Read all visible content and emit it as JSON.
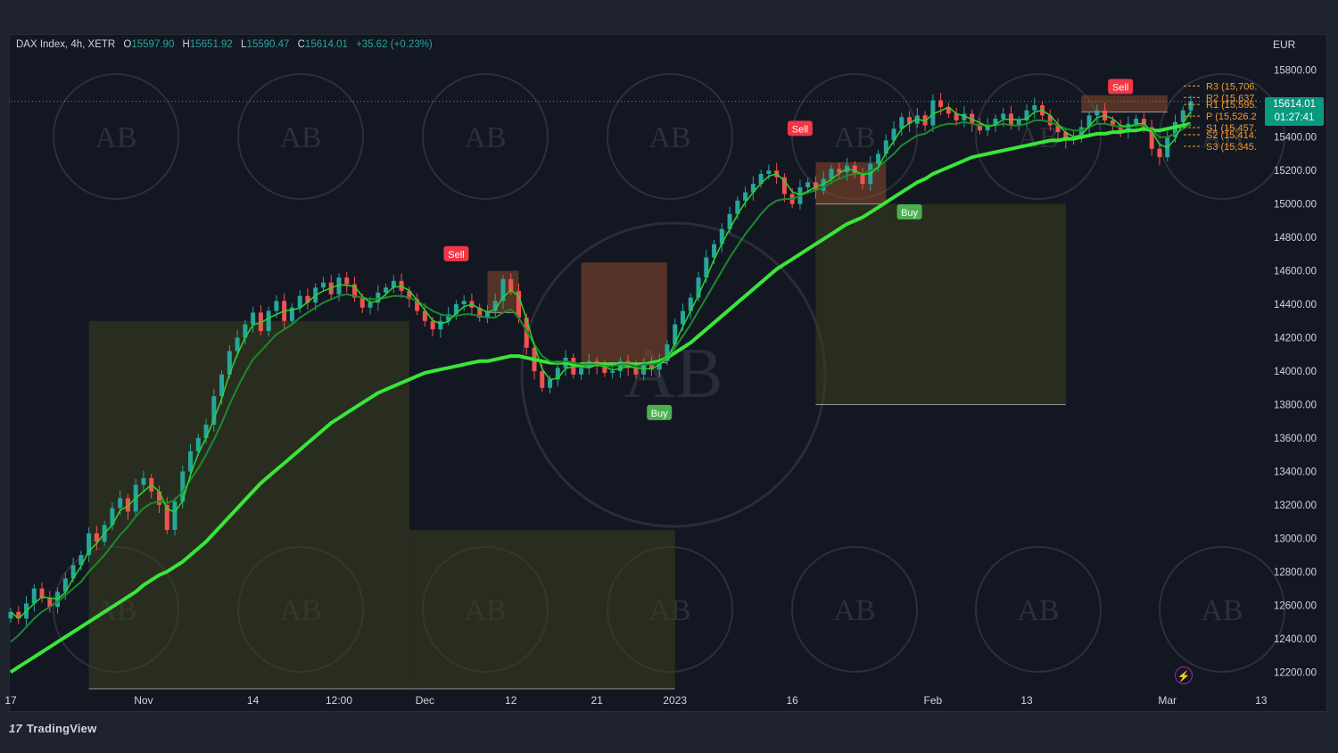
{
  "header": {
    "symbol": "DAX Index, 4h, XETR",
    "open_key": "O",
    "open": "15597.90",
    "high_key": "H",
    "high": "15651.92",
    "low_key": "L",
    "low": "15590.47",
    "close_key": "C",
    "close": "15614.01",
    "change": "+35.62 (+0.23%)"
  },
  "currency": "EUR",
  "price_badge": {
    "price": "15614.01",
    "countdown": "01:27:41"
  },
  "brand": {
    "logo_mark": "17",
    "name": "TradingView"
  },
  "icons": {
    "bolt": "lightning-icon"
  },
  "colors": {
    "up": "#26a69a",
    "down": "#ef5350",
    "ma": "#39e639",
    "ma_dim": "#1b8a2b",
    "zone_buy": "#3d3f1e",
    "zone_sell": "#8a4a2a",
    "label_sell": "#f23645",
    "label_buy": "#4caf50",
    "pivot": "#f59b2a",
    "watermark": "#5a5f6b"
  },
  "chart_data": {
    "type": "candlestick",
    "y_axis": {
      "range": [
        12100,
        15900
      ],
      "ticks": [
        "15800.00",
        "15600.00",
        "15400.00",
        "15200.00",
        "15000.00",
        "14800.00",
        "14600.00",
        "14400.00",
        "14200.00",
        "14000.00",
        "13800.00",
        "13600.00",
        "13400.00",
        "13200.00",
        "13000.00",
        "12800.00",
        "12600.00",
        "12400.00",
        "12200.00"
      ]
    },
    "x_axis": {
      "ticks": [
        "17",
        "Nov",
        "14",
        "12:00",
        "Dec",
        "12",
        "21",
        "2023",
        "16",
        "Feb",
        "13",
        "Mar",
        "13"
      ],
      "tick_index": [
        0,
        17,
        31,
        42,
        53,
        64,
        75,
        85,
        100,
        118,
        130,
        148,
        160
      ]
    },
    "close_series": [
      12560,
      12520,
      12610,
      12700,
      12640,
      12590,
      12680,
      12760,
      12840,
      12900,
      13030,
      12980,
      13080,
      13180,
      13240,
      13160,
      13320,
      13360,
      13280,
      13200,
      13050,
      13220,
      13400,
      13520,
      13600,
      13680,
      13850,
      13980,
      14120,
      14200,
      14280,
      14350,
      14240,
      14360,
      14420,
      14300,
      14380,
      14450,
      14410,
      14500,
      14530,
      14460,
      14560,
      14520,
      14440,
      14380,
      14410,
      14470,
      14500,
      14540,
      14480,
      14430,
      14360,
      14300,
      14250,
      14300,
      14340,
      14400,
      14420,
      14380,
      14320,
      14360,
      14420,
      14550,
      14480,
      14320,
      14140,
      14000,
      13900,
      13950,
      14020,
      14080,
      13980,
      14020,
      14060,
      14030,
      13990,
      14000,
      14060,
      14020,
      13980,
      14050,
      14010,
      14060,
      14160,
      14280,
      14360,
      14440,
      14560,
      14680,
      14760,
      14850,
      14940,
      15020,
      15070,
      15120,
      15180,
      15200,
      15160,
      15060,
      15000,
      15100,
      15130,
      15080,
      15150,
      15210,
      15190,
      15230,
      15180,
      15120,
      15240,
      15300,
      15380,
      15450,
      15520,
      15480,
      15530,
      15470,
      15620,
      15580,
      15540,
      15500,
      15540,
      15480,
      15440,
      15470,
      15510,
      15540,
      15470,
      15500,
      15560,
      15590,
      15530,
      15470,
      15430,
      15380,
      15400,
      15460,
      15530,
      15560,
      15500,
      15470,
      15440,
      15480,
      15510,
      15460,
      15330,
      15280,
      15400,
      15490,
      15560,
      15614
    ],
    "ma_fast": [
      12380,
      12420,
      12470,
      12520,
      12560,
      12590,
      12620,
      12660,
      12700,
      12740,
      12800,
      12850,
      12900,
      12960,
      13020,
      13070,
      13130,
      13180,
      13210,
      13220,
      13210,
      13230,
      13280,
      13350,
      13420,
      13500,
      13590,
      13690,
      13800,
      13900,
      13990,
      14070,
      14120,
      14170,
      14220,
      14250,
      14280,
      14320,
      14350,
      14380,
      14410,
      14430,
      14450,
      14460,
      14450,
      14440,
      14430,
      14430,
      14440,
      14450,
      14450,
      14440,
      14420,
      14390,
      14360,
      14340,
      14330,
      14330,
      14340,
      14340,
      14330,
      14320,
      14320,
      14350,
      14370,
      14320,
      14240,
      14160,
      14090,
      14060,
      14050,
      14060,
      14050,
      14040,
      14040,
      14040,
      14030,
      14030,
      14040,
      14040,
      14030,
      14040,
      14040,
      14050,
      14080,
      14140,
      14210,
      14280,
      14360,
      14440,
      14520,
      14600,
      14680,
      14750,
      14820,
      14880,
      14940,
      14990,
      15020,
      15030,
      15030,
      15050,
      15070,
      15080,
      15100,
      15130,
      15150,
      15170,
      15180,
      15180,
      15200,
      15220,
      15260,
      15300,
      15350,
      15380,
      15410,
      15420,
      15450,
      15470,
      15480,
      15480,
      15490,
      15480,
      15470,
      15470,
      15470,
      15480,
      15470,
      15470,
      15480,
      15500,
      15500,
      15490,
      15470,
      15450,
      15440,
      15440,
      15460,
      15480,
      15480,
      15470,
      15460,
      15460,
      15470,
      15470,
      15440,
      15400,
      15400,
      15420,
      15450,
      15480
    ],
    "ma_slow": [
      12200,
      12230,
      12260,
      12290,
      12320,
      12350,
      12380,
      12410,
      12440,
      12470,
      12500,
      12530,
      12560,
      12590,
      12620,
      12650,
      12680,
      12720,
      12750,
      12780,
      12800,
      12830,
      12860,
      12900,
      12940,
      12980,
      13030,
      13080,
      13130,
      13180,
      13230,
      13280,
      13330,
      13370,
      13410,
      13450,
      13490,
      13530,
      13570,
      13610,
      13650,
      13690,
      13720,
      13750,
      13780,
      13810,
      13840,
      13870,
      13890,
      13910,
      13930,
      13950,
      13970,
      13990,
      14000,
      14010,
      14020,
      14030,
      14040,
      14050,
      14060,
      14060,
      14070,
      14080,
      14090,
      14090,
      14080,
      14070,
      14060,
      14050,
      14050,
      14050,
      14040,
      14040,
      14040,
      14040,
      14040,
      14040,
      14040,
      14040,
      14040,
      14040,
      14050,
      14060,
      14080,
      14110,
      14140,
      14170,
      14210,
      14250,
      14290,
      14330,
      14370,
      14410,
      14450,
      14490,
      14530,
      14570,
      14610,
      14640,
      14670,
      14700,
      14730,
      14760,
      14790,
      14820,
      14850,
      14880,
      14900,
      14920,
      14950,
      14980,
      15010,
      15040,
      15070,
      15100,
      15130,
      15150,
      15180,
      15200,
      15220,
      15240,
      15260,
      15280,
      15290,
      15300,
      15310,
      15320,
      15330,
      15340,
      15350,
      15360,
      15370,
      15380,
      15380,
      15390,
      15390,
      15400,
      15410,
      15420,
      15420,
      15430,
      15430,
      15440,
      15440,
      15450,
      15440,
      15440,
      15450,
      15460,
      15470,
      15480
    ],
    "zones": [
      {
        "kind": "buy",
        "x0": 10,
        "x1": 51,
        "y0": 12100,
        "y1": 14300
      },
      {
        "kind": "buy",
        "x0": 51,
        "x1": 85,
        "y0": 12100,
        "y1": 13050
      },
      {
        "kind": "sell",
        "x0": 61,
        "x1": 65,
        "y0": 14350,
        "y1": 14600
      },
      {
        "kind": "sell",
        "x0": 73,
        "x1": 84,
        "y0": 14050,
        "y1": 14650
      },
      {
        "kind": "buy",
        "x0": 103,
        "x1": 135,
        "y0": 13800,
        "y1": 15000
      },
      {
        "kind": "sell",
        "x0": 103,
        "x1": 112,
        "y0": 15000,
        "y1": 15250
      },
      {
        "kind": "sell",
        "x0": 137,
        "x1": 148,
        "y0": 15550,
        "y1": 15650
      }
    ],
    "signals": [
      {
        "label": "Sell",
        "index": 57,
        "price": 14700
      },
      {
        "label": "Buy",
        "index": 83,
        "price": 13750
      },
      {
        "label": "Sell",
        "index": 101,
        "price": 15450
      },
      {
        "label": "Buy",
        "index": 115,
        "price": 14950
      },
      {
        "label": "Sell",
        "index": 142,
        "price": 15700
      }
    ],
    "pivots": [
      {
        "label": "R3 (15,706.",
        "price": 15706
      },
      {
        "label": "R2 (15,637.",
        "price": 15637
      },
      {
        "label": "R1 (15,595.",
        "price": 15595
      },
      {
        "label": "P (15,526.2",
        "price": 15526
      },
      {
        "label": "S1 (15,457.",
        "price": 15457
      },
      {
        "label": "S2 (15,414.",
        "price": 15414
      },
      {
        "label": "S3 (15,345.",
        "price": 15345
      }
    ],
    "last_price": 15614.01,
    "watermark_text": "AB"
  }
}
